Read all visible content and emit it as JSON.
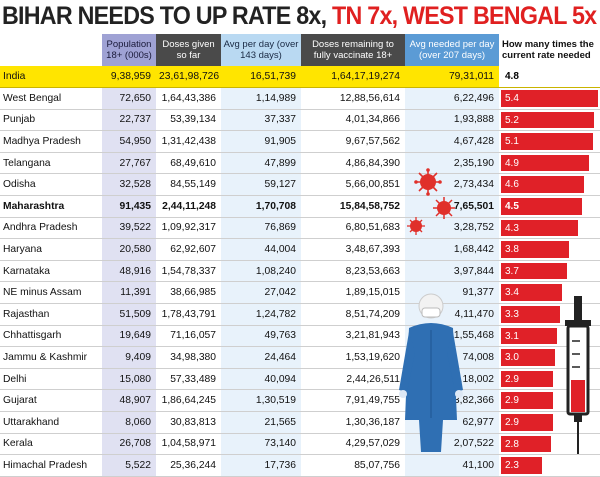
{
  "chart_data": {
    "type": "table",
    "title": {
      "part1": "BIHAR NEEDS TO UP RATE 8x, ",
      "part2": "TN 7x, WEST BENGAL 5x"
    },
    "columns": {
      "population": "Population 18+ (000s)",
      "doses": "Doses given so far",
      "avg": "Avg per day (over 143 days)",
      "remaining": "Doses remaining to fully vaccinate 18+",
      "needed": "Avg needed per day (over 207 days)",
      "rate": "How many times the current rate needed"
    },
    "rate_max": 5.4,
    "rows": [
      {
        "state": "India",
        "population": "9,38,959",
        "doses": "23,61,98,726",
        "avg": "16,51,739",
        "remaining": "1,64,17,19,274",
        "needed": "79,31,011",
        "rate": 4.8
      },
      {
        "state": "West Bengal",
        "population": "72,650",
        "doses": "1,64,43,386",
        "avg": "1,14,989",
        "remaining": "12,88,56,614",
        "needed": "6,22,496",
        "rate": 5.4
      },
      {
        "state": "Punjab",
        "population": "22,737",
        "doses": "53,39,134",
        "avg": "37,337",
        "remaining": "4,01,34,866",
        "needed": "1,93,888",
        "rate": 5.2
      },
      {
        "state": "Madhya Pradesh",
        "population": "54,950",
        "doses": "1,31,42,438",
        "avg": "91,905",
        "remaining": "9,67,57,562",
        "needed": "4,67,428",
        "rate": 5.1
      },
      {
        "state": "Telangana",
        "population": "27,767",
        "doses": "68,49,610",
        "avg": "47,899",
        "remaining": "4,86,84,390",
        "needed": "2,35,190",
        "rate": 4.9
      },
      {
        "state": "Odisha",
        "population": "32,528",
        "doses": "84,55,149",
        "avg": "59,127",
        "remaining": "5,66,00,851",
        "needed": "2,73,434",
        "rate": 4.6
      },
      {
        "state": "Maharashtra",
        "population": "91,435",
        "doses": "2,44,11,248",
        "avg": "1,70,708",
        "remaining": "15,84,58,752",
        "needed": "7,65,501",
        "rate": 4.5,
        "bold": true
      },
      {
        "state": "Andhra Pradesh",
        "population": "39,522",
        "doses": "1,09,92,317",
        "avg": "76,869",
        "remaining": "6,80,51,683",
        "needed": "3,28,752",
        "rate": 4.3
      },
      {
        "state": "Haryana",
        "population": "20,580",
        "doses": "62,92,607",
        "avg": "44,004",
        "remaining": "3,48,67,393",
        "needed": "1,68,442",
        "rate": 3.8
      },
      {
        "state": "Karnataka",
        "population": "48,916",
        "doses": "1,54,78,337",
        "avg": "1,08,240",
        "remaining": "8,23,53,663",
        "needed": "3,97,844",
        "rate": 3.7
      },
      {
        "state": "NE minus Assam",
        "population": "11,391",
        "doses": "38,66,985",
        "avg": "27,042",
        "remaining": "1,89,15,015",
        "needed": "91,377",
        "rate": 3.4
      },
      {
        "state": "Rajasthan",
        "population": "51,509",
        "doses": "1,78,43,791",
        "avg": "1,24,782",
        "remaining": "8,51,74,209",
        "needed": "4,11,470",
        "rate": 3.3
      },
      {
        "state": "Chhattisgarh",
        "population": "19,649",
        "doses": "71,16,057",
        "avg": "49,763",
        "remaining": "3,21,81,943",
        "needed": "1,55,468",
        "rate": 3.1
      },
      {
        "state": "Jammu & Kashmir",
        "population": "9,409",
        "doses": "34,98,380",
        "avg": "24,464",
        "remaining": "1,53,19,620",
        "needed": "74,008",
        "rate": 3.0
      },
      {
        "state": "Delhi",
        "population": "15,080",
        "doses": "57,33,489",
        "avg": "40,094",
        "remaining": "2,44,26,511",
        "needed": "1,18,002",
        "rate": 2.9
      },
      {
        "state": "Gujarat",
        "population": "48,907",
        "doses": "1,86,64,245",
        "avg": "1,30,519",
        "remaining": "7,91,49,755",
        "needed": "3,82,366",
        "rate": 2.9
      },
      {
        "state": "Uttarakhand",
        "population": "8,060",
        "doses": "30,83,813",
        "avg": "21,565",
        "remaining": "1,30,36,187",
        "needed": "62,977",
        "rate": 2.9
      },
      {
        "state": "Kerala",
        "population": "26,708",
        "doses": "1,04,58,971",
        "avg": "73,140",
        "remaining": "4,29,57,029",
        "needed": "2,07,522",
        "rate": 2.8
      },
      {
        "state": "Himachal Pradesh",
        "population": "5,522",
        "doses": "25,36,244",
        "avg": "17,736",
        "remaining": "85,07,756",
        "needed": "41,100",
        "rate": 2.3
      }
    ]
  },
  "colors": {
    "title_red": "#e02020",
    "bar_red": "#e02128",
    "india_yellow": "#ffe500",
    "virus_red": "#e0302a",
    "ppe_blue": "#2f6fb3"
  },
  "decor": {
    "icons": [
      "coronavirus-icon",
      "health-worker-ppe-icon",
      "syringe-icon"
    ]
  }
}
